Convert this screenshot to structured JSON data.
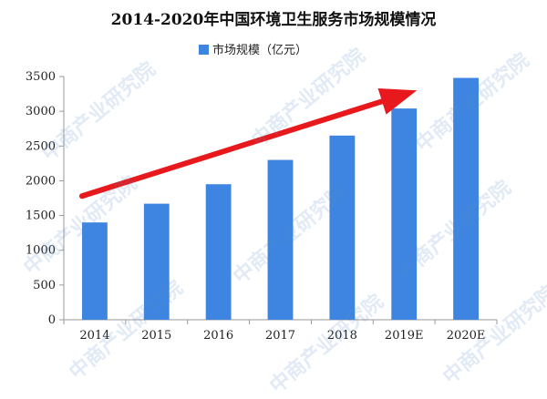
{
  "chart_data": {
    "type": "bar",
    "title": "2014-2020年中国环境卫生服务市场规模情况",
    "legend": "top-center",
    "series": [
      {
        "name": "市场规模（亿元）",
        "color": "#3d85e0",
        "values": [
          1400,
          1670,
          1950,
          2300,
          2650,
          3040,
          3480
        ]
      }
    ],
    "categories": [
      "2014",
      "2015",
      "2016",
      "2017",
      "2018",
      "2019E",
      "2020E"
    ],
    "ylim": [
      0,
      3500
    ],
    "yticks": [
      0,
      500,
      1000,
      1500,
      2000,
      2500,
      3000,
      3500
    ],
    "ytick_labels": [
      "0",
      "500",
      "1000",
      "1500",
      "2000",
      "2500",
      "3000",
      "3500"
    ],
    "grid": false,
    "trend_arrow_color": "#e8191d"
  },
  "watermark": {
    "text": "中商产业研究院",
    "color": "#5a8cc8"
  }
}
